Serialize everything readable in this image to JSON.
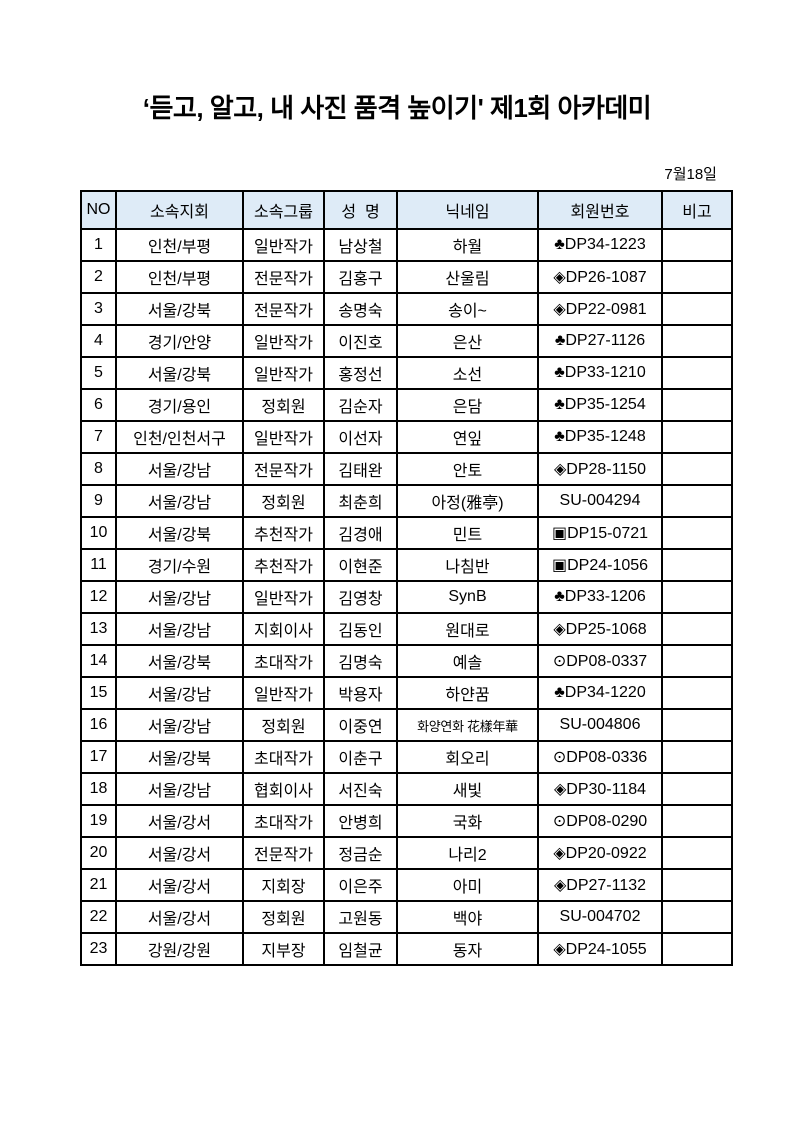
{
  "page": {
    "title": "‘듣고, 알고, 내 사진 품격 높이기' 제1회 아카데미",
    "date_label": "7월18일"
  },
  "colors": {
    "header_fill": "#deebf7",
    "border": "#000000",
    "text": "#000000",
    "background": "#ffffff"
  },
  "table": {
    "columns": [
      {
        "key": "no",
        "label": "NO"
      },
      {
        "key": "branch",
        "label": "소속지회"
      },
      {
        "key": "group",
        "label": "소속그룹"
      },
      {
        "key": "name",
        "label": "성  명"
      },
      {
        "key": "nickname",
        "label": "닉네임"
      },
      {
        "key": "member_no",
        "label": "회원번호"
      },
      {
        "key": "note",
        "label": "비고"
      }
    ],
    "rows": [
      {
        "no": "1",
        "branch": "인천/부평",
        "group": "일반작가",
        "name": "남상철",
        "nickname": "하월",
        "member_no": "♣DP34-1223",
        "note": ""
      },
      {
        "no": "2",
        "branch": "인천/부평",
        "group": "전문작가",
        "name": "김홍구",
        "nickname": "산울림",
        "member_no": "◈DP26-1087",
        "note": ""
      },
      {
        "no": "3",
        "branch": "서울/강북",
        "group": "전문작가",
        "name": "송명숙",
        "nickname": "송이~",
        "member_no": "◈DP22-0981",
        "note": ""
      },
      {
        "no": "4",
        "branch": "경기/안양",
        "group": "일반작가",
        "name": "이진호",
        "nickname": "은산",
        "member_no": "♣DP27-1126",
        "note": ""
      },
      {
        "no": "5",
        "branch": "서울/강북",
        "group": "일반작가",
        "name": "홍정선",
        "nickname": "소선",
        "member_no": "♣DP33-1210",
        "note": ""
      },
      {
        "no": "6",
        "branch": "경기/용인",
        "group": "정회원",
        "name": "김순자",
        "nickname": "은담",
        "member_no": "♣DP35-1254",
        "note": ""
      },
      {
        "no": "7",
        "branch": "인천/인천서구",
        "group": "일반작가",
        "name": "이선자",
        "nickname": "연잎",
        "member_no": "♣DP35-1248",
        "note": ""
      },
      {
        "no": "8",
        "branch": "서울/강남",
        "group": "전문작가",
        "name": "김태완",
        "nickname": "안토",
        "member_no": "◈DP28-1150",
        "note": ""
      },
      {
        "no": "9",
        "branch": "서울/강남",
        "group": "정회원",
        "name": "최춘희",
        "nickname": "아정(雅亭)",
        "member_no": "SU-004294",
        "note": ""
      },
      {
        "no": "10",
        "branch": "서울/강북",
        "group": "추천작가",
        "name": "김경애",
        "nickname": "민트",
        "member_no": "▣DP15-0721",
        "note": ""
      },
      {
        "no": "11",
        "branch": "경기/수원",
        "group": "추천작가",
        "name": "이현준",
        "nickname": "나침반",
        "member_no": "▣DP24-1056",
        "note": ""
      },
      {
        "no": "12",
        "branch": "서울/강남",
        "group": "일반작가",
        "name": "김영창",
        "nickname": "SynB",
        "member_no": "♣DP33-1206",
        "note": ""
      },
      {
        "no": "13",
        "branch": "서울/강남",
        "group": "지회이사",
        "name": "김동인",
        "nickname": "원대로",
        "member_no": "◈DP25-1068",
        "note": ""
      },
      {
        "no": "14",
        "branch": "서울/강북",
        "group": "초대작가",
        "name": "김명숙",
        "nickname": "예솔",
        "member_no": "⊙DP08-0337",
        "note": ""
      },
      {
        "no": "15",
        "branch": "서울/강남",
        "group": "일반작가",
        "name": "박용자",
        "nickname": "하얀꿈",
        "member_no": "♣DP34-1220",
        "note": ""
      },
      {
        "no": "16",
        "branch": "서울/강남",
        "group": "정회원",
        "name": "이중연",
        "nickname": "화양연화 花樣年華",
        "member_no": "SU-004806",
        "note": ""
      },
      {
        "no": "17",
        "branch": "서울/강북",
        "group": "초대작가",
        "name": "이춘구",
        "nickname": "회오리",
        "member_no": "⊙DP08-0336",
        "note": ""
      },
      {
        "no": "18",
        "branch": "서울/강남",
        "group": "협회이사",
        "name": "서진숙",
        "nickname": "새빛",
        "member_no": "◈DP30-1184",
        "note": ""
      },
      {
        "no": "19",
        "branch": "서울/강서",
        "group": "초대작가",
        "name": "안병희",
        "nickname": "국화",
        "member_no": "⊙DP08-0290",
        "note": ""
      },
      {
        "no": "20",
        "branch": "서울/강서",
        "group": "전문작가",
        "name": "정금순",
        "nickname": "나리2",
        "member_no": "◈DP20-0922",
        "note": ""
      },
      {
        "no": "21",
        "branch": "서울/강서",
        "group": "지회장",
        "name": "이은주",
        "nickname": "아미",
        "member_no": "◈DP27-1132",
        "note": ""
      },
      {
        "no": "22",
        "branch": "서울/강서",
        "group": "정회원",
        "name": "고원동",
        "nickname": "백야",
        "member_no": "SU-004702",
        "note": ""
      },
      {
        "no": "23",
        "branch": "강원/강원",
        "group": "지부장",
        "name": "임철균",
        "nickname": "동자",
        "member_no": "◈DP24-1055",
        "note": ""
      }
    ]
  }
}
